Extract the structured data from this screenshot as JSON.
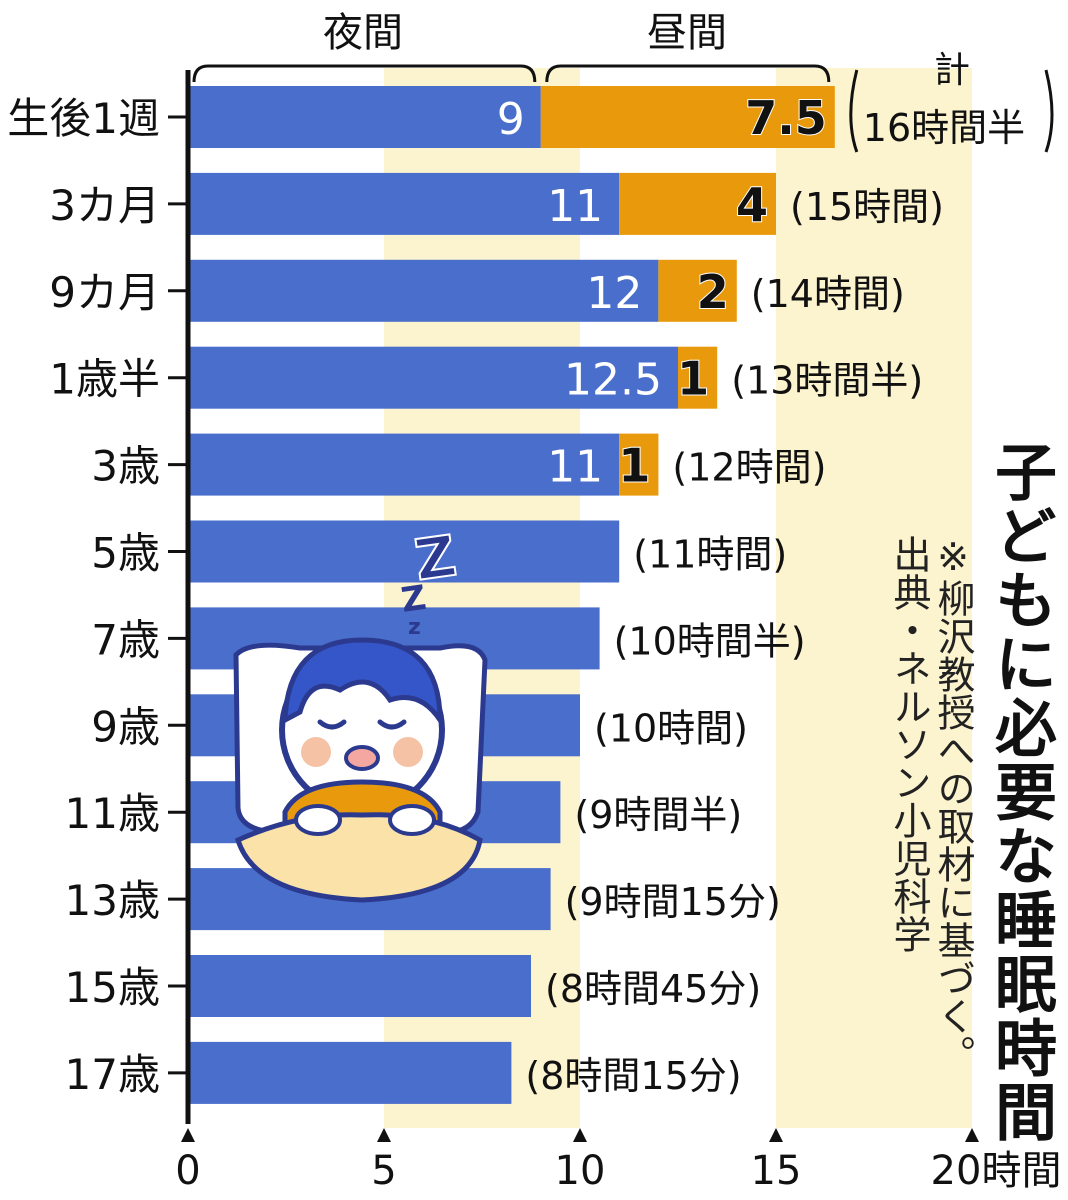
{
  "chart_data": {
    "type": "bar",
    "title": "子どもに必要な睡眠時間",
    "note": [
      "※柳沢教授への取材に基づく。",
      "出典・ネルソン小児科学"
    ],
    "group_labels": {
      "night": "夜間",
      "day": "昼間",
      "total": "計"
    },
    "x_axis": {
      "ticks": [
        0,
        5,
        10,
        15,
        20
      ],
      "tick_labels": [
        "0",
        "5",
        "10",
        "15",
        "20時間"
      ],
      "range": [
        0,
        20
      ]
    },
    "categories": [
      "生後1週",
      "3カ月",
      "9カ月",
      "1歳半",
      "3歳",
      "5歳",
      "7歳",
      "9歳",
      "11歳",
      "13歳",
      "15歳",
      "17歳"
    ],
    "series": [
      {
        "name": "夜間",
        "values": [
          9,
          11,
          12,
          12.5,
          11,
          11,
          10.5,
          10,
          9.5,
          9.25,
          8.75,
          8.25
        ]
      },
      {
        "name": "昼間",
        "values": [
          7.5,
          4,
          2,
          1,
          1,
          0,
          0,
          0,
          0,
          0,
          0,
          0
        ]
      }
    ],
    "night_value_labels": [
      "9",
      "11",
      "12",
      "12.5",
      "11",
      "",
      "",
      "",
      "",
      "",
      "",
      ""
    ],
    "day_value_labels": [
      "7.5",
      "4",
      "2",
      "1",
      "1",
      "",
      "",
      "",
      "",
      "",
      "",
      ""
    ],
    "total_labels": [
      "16時間半",
      "(15時間)",
      "(14時間)",
      "(13時間半)",
      "(12時間)",
      "(11時間)",
      "(10時間半)",
      "(10時間)",
      "(9時間半)",
      "(9時間15分)",
      "(8時間45分)",
      "(8時間15分)"
    ],
    "colors": {
      "night": "#4a6ecb",
      "day": "#e89a0c",
      "band": "#fcf3cf"
    },
    "band_ranges": [
      [
        5,
        10
      ],
      [
        15,
        20
      ]
    ],
    "illustration": "sleeping-child-zzz"
  }
}
